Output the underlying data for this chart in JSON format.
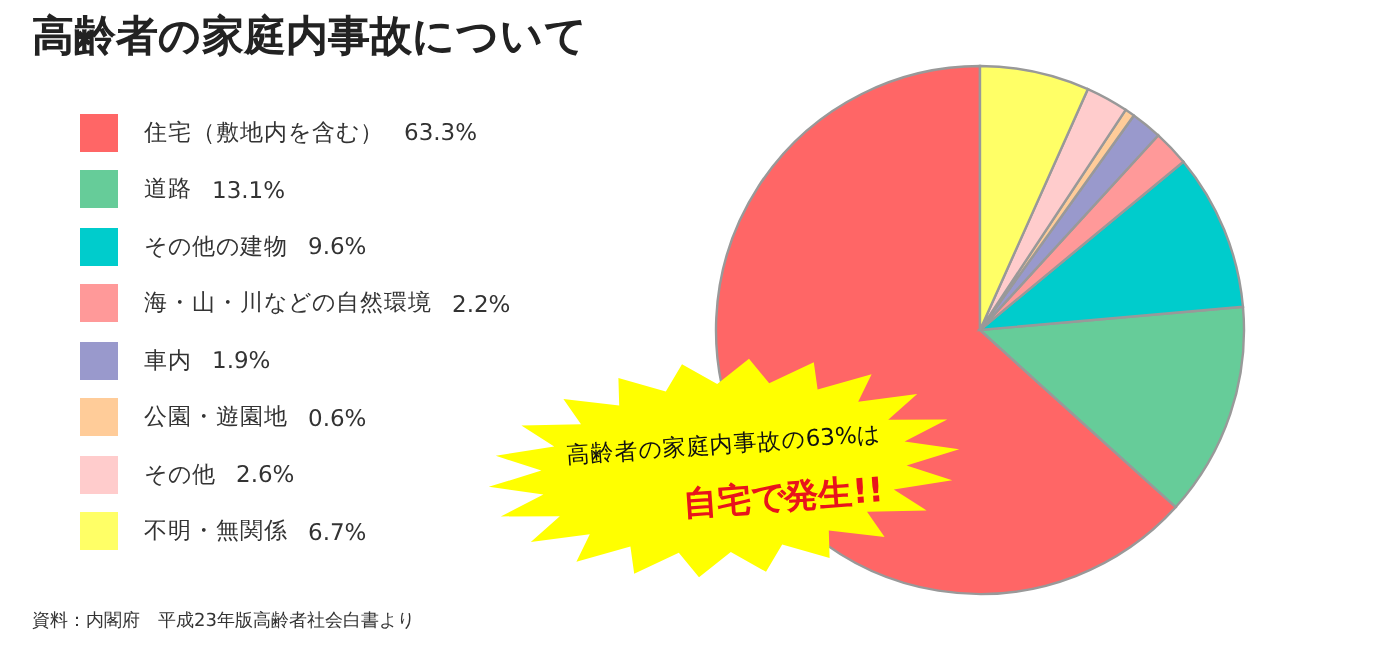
{
  "chart_data": {
    "type": "pie",
    "title": "高齢者の家庭内事故について",
    "categories": [
      "住宅（敷地内を含む）",
      "道路",
      "その他の建物",
      "海・山・川などの自然環境",
      "車内",
      "公園・遊園地",
      "その他",
      "不明・無関係"
    ],
    "values": [
      63.3,
      13.1,
      9.6,
      2.2,
      1.9,
      0.6,
      2.6,
      6.7
    ],
    "value_labels": [
      "63.3%",
      "13.1%",
      "9.6%",
      "2.2%",
      "1.9%",
      "0.6%",
      "2.6%",
      "6.7%"
    ],
    "colors": [
      "#ff6666",
      "#66cc99",
      "#00cccc",
      "#ff9999",
      "#9999cc",
      "#ffcc99",
      "#ffcccc",
      "#ffff66"
    ],
    "legend": "left",
    "annotations": [
      "高齢者の家庭内事故の63%は",
      "自宅で発生!!",
      "資料：内閣府　平成23年版高齢者社会白書より"
    ]
  }
}
